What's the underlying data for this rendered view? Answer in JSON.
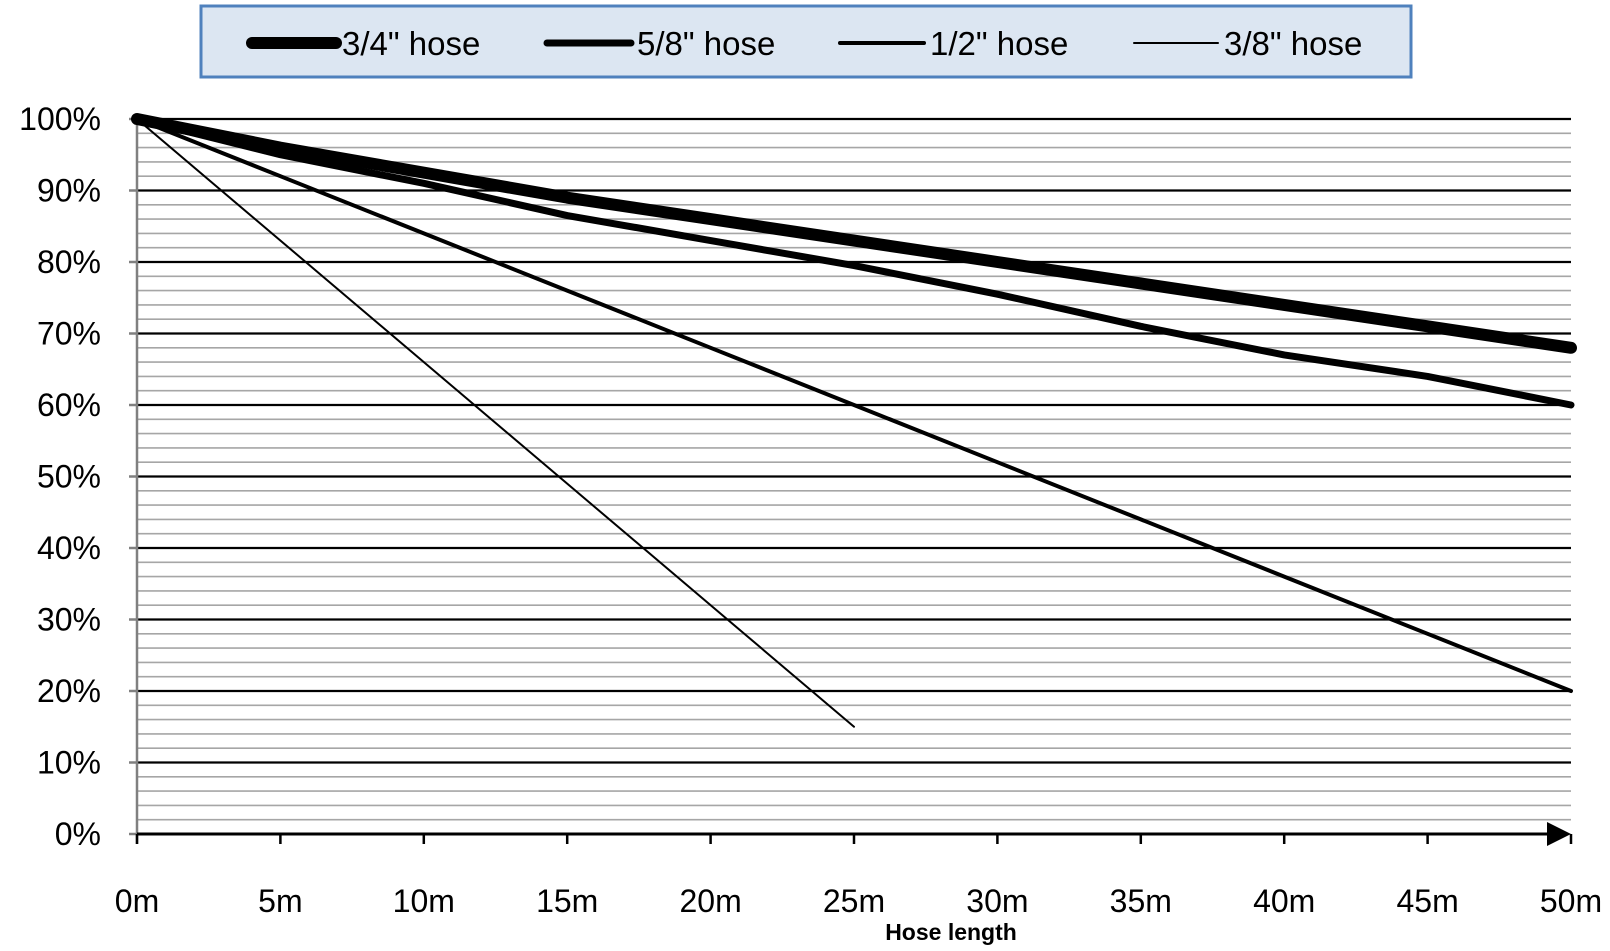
{
  "chart_data": {
    "type": "line",
    "title": "",
    "xlabel": "Hose length",
    "ylabel": "",
    "x": [
      0,
      5,
      10,
      15,
      20,
      25,
      30,
      35,
      40,
      45,
      50
    ],
    "x_tick_labels": [
      "0m",
      "5m",
      "10m",
      "15m",
      "20m",
      "25m",
      "30m",
      "35m",
      "40m",
      "45m",
      "50m"
    ],
    "y_tick_labels": [
      "0%",
      "10%",
      "20%",
      "30%",
      "40%",
      "50%",
      "60%",
      "70%",
      "80%",
      "90%",
      "100%"
    ],
    "xlim": [
      0,
      50
    ],
    "ylim": [
      0,
      100
    ],
    "grid": {
      "major_step": 10,
      "minor_step": 2
    },
    "legend_position": "top",
    "series": [
      {
        "name": "3/4\" hose",
        "color": "#000000",
        "x": [
          0,
          5,
          10,
          15,
          20,
          25,
          30,
          35,
          40,
          45,
          50
        ],
        "values": [
          100,
          96,
          92.5,
          89,
          86,
          83,
          80,
          77,
          74,
          71,
          68
        ]
      },
      {
        "name": "5/8\" hose",
        "color": "#000000",
        "x": [
          0,
          5,
          10,
          15,
          20,
          25,
          30,
          35,
          40,
          45,
          50
        ],
        "values": [
          100,
          95,
          91,
          86.5,
          83,
          79.5,
          75.5,
          71,
          67,
          64,
          60
        ]
      },
      {
        "name": "1/2\" hose",
        "color": "#000000",
        "x": [
          0,
          5,
          10,
          15,
          20,
          25,
          30,
          35,
          40,
          45,
          50
        ],
        "values": [
          100,
          92,
          84,
          76,
          68,
          60,
          52,
          44,
          36,
          28,
          20
        ]
      },
      {
        "name": "3/8\" hose",
        "color": "#000000",
        "x": [
          0,
          25
        ],
        "values": [
          100,
          15
        ]
      }
    ]
  },
  "colors": {
    "legend_fill": "#dce6f2",
    "legend_border": "#4f81bd",
    "major_grid": "#000000",
    "minor_grid": "#a6a6a6",
    "axis": "#000000"
  }
}
